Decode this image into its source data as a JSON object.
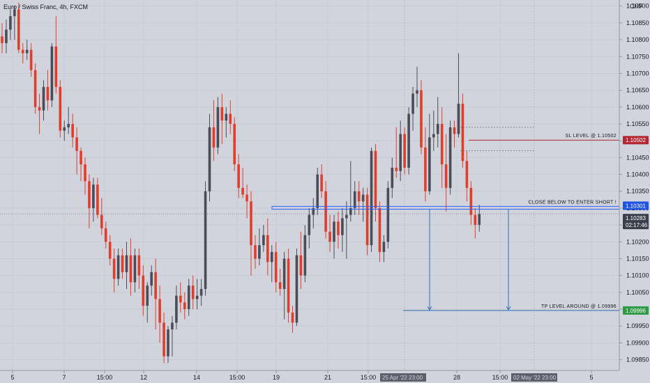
{
  "header": {
    "symbol_title": "Euro / Swiss Franc, 4h, FXCM",
    "currency": "CHF"
  },
  "colors": {
    "background": "#d1d4dc",
    "up_candle": "#4a4d57",
    "down_candle": "#e03e2d",
    "grid": "#c3c6ce",
    "box_line": "#2962ff",
    "sl_line": "#b22833",
    "tp_line": "#2d6fb3",
    "current_price_tag": "#3a3f4b",
    "label_tag_dark": "#131722"
  },
  "chart_data": {
    "type": "candlestick",
    "title": "Euro / Swiss Franc, 4h, FXCM",
    "x_ticks": [
      "5",
      "7",
      "15:00",
      "12",
      "14",
      "15:00",
      "19",
      "21",
      "15:00",
      "28",
      "15:00",
      "5"
    ],
    "y_ticks": [
      "1.10900",
      "1.10850",
      "1.10800",
      "1.10750",
      "1.10700",
      "1.10650",
      "1.10600",
      "1.10550",
      "1.10500",
      "1.10450",
      "1.10400",
      "1.10350",
      "1.10300",
      "1.10250",
      "1.10200",
      "1.10150",
      "1.10100",
      "1.10050",
      "1.10000",
      "1.09950",
      "1.09900",
      "1.09850"
    ],
    "y_range": [
      1.09818,
      1.10918
    ],
    "grid": true,
    "candles": [
      {
        "o": 1.1081,
        "h": 1.1085,
        "l": 1.1076,
        "c": 1.1079
      },
      {
        "o": 1.1079,
        "h": 1.1086,
        "l": 1.1076,
        "c": 1.1083
      },
      {
        "o": 1.1083,
        "h": 1.1089,
        "l": 1.108,
        "c": 1.1087
      },
      {
        "o": 1.1087,
        "h": 1.109,
        "l": 1.108,
        "c": 1.1089
      },
      {
        "o": 1.1089,
        "h": 1.1091,
        "l": 1.1076,
        "c": 1.1077
      },
      {
        "o": 1.1077,
        "h": 1.1079,
        "l": 1.1073,
        "c": 1.1076
      },
      {
        "o": 1.1076,
        "h": 1.108,
        "l": 1.1074,
        "c": 1.1077
      },
      {
        "o": 1.1077,
        "h": 1.1079,
        "l": 1.1069,
        "c": 1.1071
      },
      {
        "o": 1.1071,
        "h": 1.1073,
        "l": 1.1058,
        "c": 1.106
      },
      {
        "o": 1.106,
        "h": 1.1064,
        "l": 1.1052,
        "c": 1.1059
      },
      {
        "o": 1.1059,
        "h": 1.1068,
        "l": 1.1056,
        "c": 1.1066
      },
      {
        "o": 1.1066,
        "h": 1.1071,
        "l": 1.1059,
        "c": 1.1062
      },
      {
        "o": 1.1062,
        "h": 1.1079,
        "l": 1.106,
        "c": 1.1078
      },
      {
        "o": 1.1078,
        "h": 1.1087,
        "l": 1.1064,
        "c": 1.1066
      },
      {
        "o": 1.1066,
        "h": 1.1068,
        "l": 1.1051,
        "c": 1.1053
      },
      {
        "o": 1.1053,
        "h": 1.1056,
        "l": 1.105,
        "c": 1.1054
      },
      {
        "o": 1.1054,
        "h": 1.106,
        "l": 1.1052,
        "c": 1.1055
      },
      {
        "o": 1.1055,
        "h": 1.1058,
        "l": 1.1048,
        "c": 1.1051
      },
      {
        "o": 1.1051,
        "h": 1.1054,
        "l": 1.104,
        "c": 1.1047
      },
      {
        "o": 1.1047,
        "h": 1.1048,
        "l": 1.1038,
        "c": 1.1043
      },
      {
        "o": 1.1043,
        "h": 1.1045,
        "l": 1.1034,
        "c": 1.1038
      },
      {
        "o": 1.1038,
        "h": 1.104,
        "l": 1.1024,
        "c": 1.103
      },
      {
        "o": 1.103,
        "h": 1.1039,
        "l": 1.1026,
        "c": 1.1037
      },
      {
        "o": 1.1037,
        "h": 1.1039,
        "l": 1.1027,
        "c": 1.1028
      },
      {
        "o": 1.1028,
        "h": 1.1033,
        "l": 1.1022,
        "c": 1.1024
      },
      {
        "o": 1.1024,
        "h": 1.1026,
        "l": 1.1018,
        "c": 1.102
      },
      {
        "o": 1.102,
        "h": 1.1022,
        "l": 1.1013,
        "c": 1.1015
      },
      {
        "o": 1.1015,
        "h": 1.1018,
        "l": 1.1005,
        "c": 1.1009
      },
      {
        "o": 1.1009,
        "h": 1.1018,
        "l": 1.1007,
        "c": 1.1016
      },
      {
        "o": 1.1016,
        "h": 1.1018,
        "l": 1.1009,
        "c": 1.1011
      },
      {
        "o": 1.1011,
        "h": 1.102,
        "l": 1.1006,
        "c": 1.1016
      },
      {
        "o": 1.1016,
        "h": 1.1021,
        "l": 1.1004,
        "c": 1.1008
      },
      {
        "o": 1.1008,
        "h": 1.1018,
        "l": 1.1005,
        "c": 1.1016
      },
      {
        "o": 1.1016,
        "h": 1.1018,
        "l": 1.1006,
        "c": 1.101
      },
      {
        "o": 1.101,
        "h": 1.1013,
        "l": 1.0998,
        "c": 1.1001
      },
      {
        "o": 1.1001,
        "h": 1.1008,
        "l": 1.0996,
        "c": 1.1007
      },
      {
        "o": 1.1007,
        "h": 1.1013,
        "l": 1.1004,
        "c": 1.1011
      },
      {
        "o": 1.1011,
        "h": 1.1015,
        "l": 1.0994,
        "c": 1.1003
      },
      {
        "o": 1.1003,
        "h": 1.1007,
        "l": 1.099,
        "c": 1.0996
      },
      {
        "o": 1.0996,
        "h": 1.0999,
        "l": 1.0984,
        "c": 1.0986
      },
      {
        "o": 1.0986,
        "h": 1.0995,
        "l": 1.0984,
        "c": 1.0994
      },
      {
        "o": 1.0994,
        "h": 1.0998,
        "l": 1.0986,
        "c": 1.0996
      },
      {
        "o": 1.0996,
        "h": 1.1007,
        "l": 1.0994,
        "c": 1.1004
      },
      {
        "o": 1.1004,
        "h": 1.1008,
        "l": 1.0999,
        "c": 1.1002
      },
      {
        "o": 1.1002,
        "h": 1.1005,
        "l": 1.0997,
        "c": 1.1
      },
      {
        "o": 1.1,
        "h": 1.1009,
        "l": 1.0998,
        "c": 1.1007
      },
      {
        "o": 1.1007,
        "h": 1.101,
        "l": 1.1,
        "c": 1.1003
      },
      {
        "o": 1.1003,
        "h": 1.1009,
        "l": 1.1,
        "c": 1.1004
      },
      {
        "o": 1.1004,
        "h": 1.1009,
        "l": 1.1001,
        "c": 1.1006
      },
      {
        "o": 1.1006,
        "h": 1.1038,
        "l": 1.1004,
        "c": 1.1035
      },
      {
        "o": 1.1035,
        "h": 1.1058,
        "l": 1.1032,
        "c": 1.1054
      },
      {
        "o": 1.1054,
        "h": 1.1062,
        "l": 1.1044,
        "c": 1.1048
      },
      {
        "o": 1.1048,
        "h": 1.1063,
        "l": 1.1046,
        "c": 1.106
      },
      {
        "o": 1.106,
        "h": 1.1064,
        "l": 1.1049,
        "c": 1.1056
      },
      {
        "o": 1.1056,
        "h": 1.106,
        "l": 1.1051,
        "c": 1.1058
      },
      {
        "o": 1.1058,
        "h": 1.1062,
        "l": 1.1052,
        "c": 1.1055
      },
      {
        "o": 1.1055,
        "h": 1.1057,
        "l": 1.1041,
        "c": 1.1043
      },
      {
        "o": 1.1043,
        "h": 1.1046,
        "l": 1.1033,
        "c": 1.1036
      },
      {
        "o": 1.1036,
        "h": 1.1042,
        "l": 1.1033,
        "c": 1.1034
      },
      {
        "o": 1.1034,
        "h": 1.1037,
        "l": 1.1027,
        "c": 1.1032
      },
      {
        "o": 1.1032,
        "h": 1.1035,
        "l": 1.101,
        "c": 1.1019
      },
      {
        "o": 1.1019,
        "h": 1.1022,
        "l": 1.1012,
        "c": 1.1015
      },
      {
        "o": 1.1015,
        "h": 1.1024,
        "l": 1.1013,
        "c": 1.1019
      },
      {
        "o": 1.1019,
        "h": 1.1025,
        "l": 1.1017,
        "c": 1.1022
      },
      {
        "o": 1.1022,
        "h": 1.1027,
        "l": 1.101,
        "c": 1.1014
      },
      {
        "o": 1.1014,
        "h": 1.1019,
        "l": 1.1008,
        "c": 1.1017
      },
      {
        "o": 1.1017,
        "h": 1.102,
        "l": 1.1005,
        "c": 1.1008
      },
      {
        "o": 1.1008,
        "h": 1.1012,
        "l": 1.1004,
        "c": 1.1006
      },
      {
        "o": 1.1006,
        "h": 1.1017,
        "l": 1.0997,
        "c": 1.1015
      },
      {
        "o": 1.1015,
        "h": 1.1018,
        "l": 1.0996,
        "c": 1.0999
      },
      {
        "o": 1.0999,
        "h": 1.1001,
        "l": 1.0993,
        "c": 1.0996
      },
      {
        "o": 1.0996,
        "h": 1.1018,
        "l": 1.0995,
        "c": 1.1016
      },
      {
        "o": 1.1016,
        "h": 1.1023,
        "l": 1.1006,
        "c": 1.101
      },
      {
        "o": 1.101,
        "h": 1.1025,
        "l": 1.1008,
        "c": 1.1022
      },
      {
        "o": 1.1022,
        "h": 1.103,
        "l": 1.1018,
        "c": 1.1028
      },
      {
        "o": 1.1028,
        "h": 1.1033,
        "l": 1.1024,
        "c": 1.103
      },
      {
        "o": 1.103,
        "h": 1.1042,
        "l": 1.1028,
        "c": 1.104
      },
      {
        "o": 1.104,
        "h": 1.1043,
        "l": 1.1033,
        "c": 1.1035
      },
      {
        "o": 1.1035,
        "h": 1.1038,
        "l": 1.1021,
        "c": 1.1023
      },
      {
        "o": 1.1023,
        "h": 1.1028,
        "l": 1.1017,
        "c": 1.102
      },
      {
        "o": 1.102,
        "h": 1.1028,
        "l": 1.1015,
        "c": 1.1026
      },
      {
        "o": 1.1026,
        "h": 1.1029,
        "l": 1.1018,
        "c": 1.1022
      },
      {
        "o": 1.1022,
        "h": 1.103,
        "l": 1.1017,
        "c": 1.1027
      },
      {
        "o": 1.1027,
        "h": 1.1032,
        "l": 1.1015,
        "c": 1.1028
      },
      {
        "o": 1.1028,
        "h": 1.1044,
        "l": 1.1026,
        "c": 1.103
      },
      {
        "o": 1.103,
        "h": 1.1038,
        "l": 1.1028,
        "c": 1.1035
      },
      {
        "o": 1.1035,
        "h": 1.1038,
        "l": 1.1028,
        "c": 1.1032
      },
      {
        "o": 1.1032,
        "h": 1.1036,
        "l": 1.1026,
        "c": 1.1034
      },
      {
        "o": 1.1034,
        "h": 1.1036,
        "l": 1.1016,
        "c": 1.1019
      },
      {
        "o": 1.1019,
        "h": 1.1048,
        "l": 1.1017,
        "c": 1.1047
      },
      {
        "o": 1.1047,
        "h": 1.1049,
        "l": 1.1026,
        "c": 1.103
      },
      {
        "o": 1.103,
        "h": 1.1032,
        "l": 1.1014,
        "c": 1.1017
      },
      {
        "o": 1.1017,
        "h": 1.1022,
        "l": 1.1014,
        "c": 1.102
      },
      {
        "o": 1.102,
        "h": 1.1038,
        "l": 1.1018,
        "c": 1.1036
      },
      {
        "o": 1.1036,
        "h": 1.1045,
        "l": 1.1033,
        "c": 1.1042
      },
      {
        "o": 1.1042,
        "h": 1.1054,
        "l": 1.1039,
        "c": 1.1041
      },
      {
        "o": 1.1041,
        "h": 1.1056,
        "l": 1.1038,
        "c": 1.1052
      },
      {
        "o": 1.1052,
        "h": 1.1054,
        "l": 1.104,
        "c": 1.1042
      },
      {
        "o": 1.1042,
        "h": 1.106,
        "l": 1.104,
        "c": 1.1058
      },
      {
        "o": 1.1058,
        "h": 1.1066,
        "l": 1.1053,
        "c": 1.1064
      },
      {
        "o": 1.1064,
        "h": 1.1072,
        "l": 1.106,
        "c": 1.1065
      },
      {
        "o": 1.1065,
        "h": 1.1068,
        "l": 1.1046,
        "c": 1.1048
      },
      {
        "o": 1.1048,
        "h": 1.1054,
        "l": 1.1032,
        "c": 1.1035
      },
      {
        "o": 1.1035,
        "h": 1.1058,
        "l": 1.1034,
        "c": 1.1051
      },
      {
        "o": 1.1051,
        "h": 1.1059,
        "l": 1.1047,
        "c": 1.1052
      },
      {
        "o": 1.1052,
        "h": 1.1063,
        "l": 1.1048,
        "c": 1.1055
      },
      {
        "o": 1.1055,
        "h": 1.106,
        "l": 1.1036,
        "c": 1.1043
      },
      {
        "o": 1.1043,
        "h": 1.1052,
        "l": 1.1029,
        "c": 1.1036
      },
      {
        "o": 1.1036,
        "h": 1.1056,
        "l": 1.1034,
        "c": 1.1054
      },
      {
        "o": 1.1054,
        "h": 1.1056,
        "l": 1.1048,
        "c": 1.1052
      },
      {
        "o": 1.1052,
        "h": 1.1076,
        "l": 1.1051,
        "c": 1.1061
      },
      {
        "o": 1.1061,
        "h": 1.1064,
        "l": 1.1042,
        "c": 1.1044
      },
      {
        "o": 1.1044,
        "h": 1.1047,
        "l": 1.1032,
        "c": 1.1036
      },
      {
        "o": 1.1036,
        "h": 1.1038,
        "l": 1.1025,
        "c": 1.1028
      },
      {
        "o": 1.1028,
        "h": 1.103,
        "l": 1.1021,
        "c": 1.1025
      },
      {
        "o": 1.1025,
        "h": 1.1031,
        "l": 1.1023,
        "c": 1.10283
      }
    ],
    "levels": [
      {
        "name": "sl",
        "label": "SL LEVEL @ 1.10502",
        "price": 1.10502,
        "tag": "1.10502"
      },
      {
        "name": "entry",
        "label": "CLOSE BELOW TO ENTER SHORT !",
        "price": 1.10301,
        "tag": "1.10301"
      },
      {
        "name": "tp",
        "label": "TP LEVEL AROUND @ 1.09996",
        "price": 1.09996,
        "tag": "1.09996"
      }
    ],
    "current_price": {
      "value": "1.10283",
      "countdown": "02:17:46"
    },
    "time_labels": {
      "left": "25 Apr '22  23:00",
      "right": "02 May '22  23:00"
    }
  }
}
